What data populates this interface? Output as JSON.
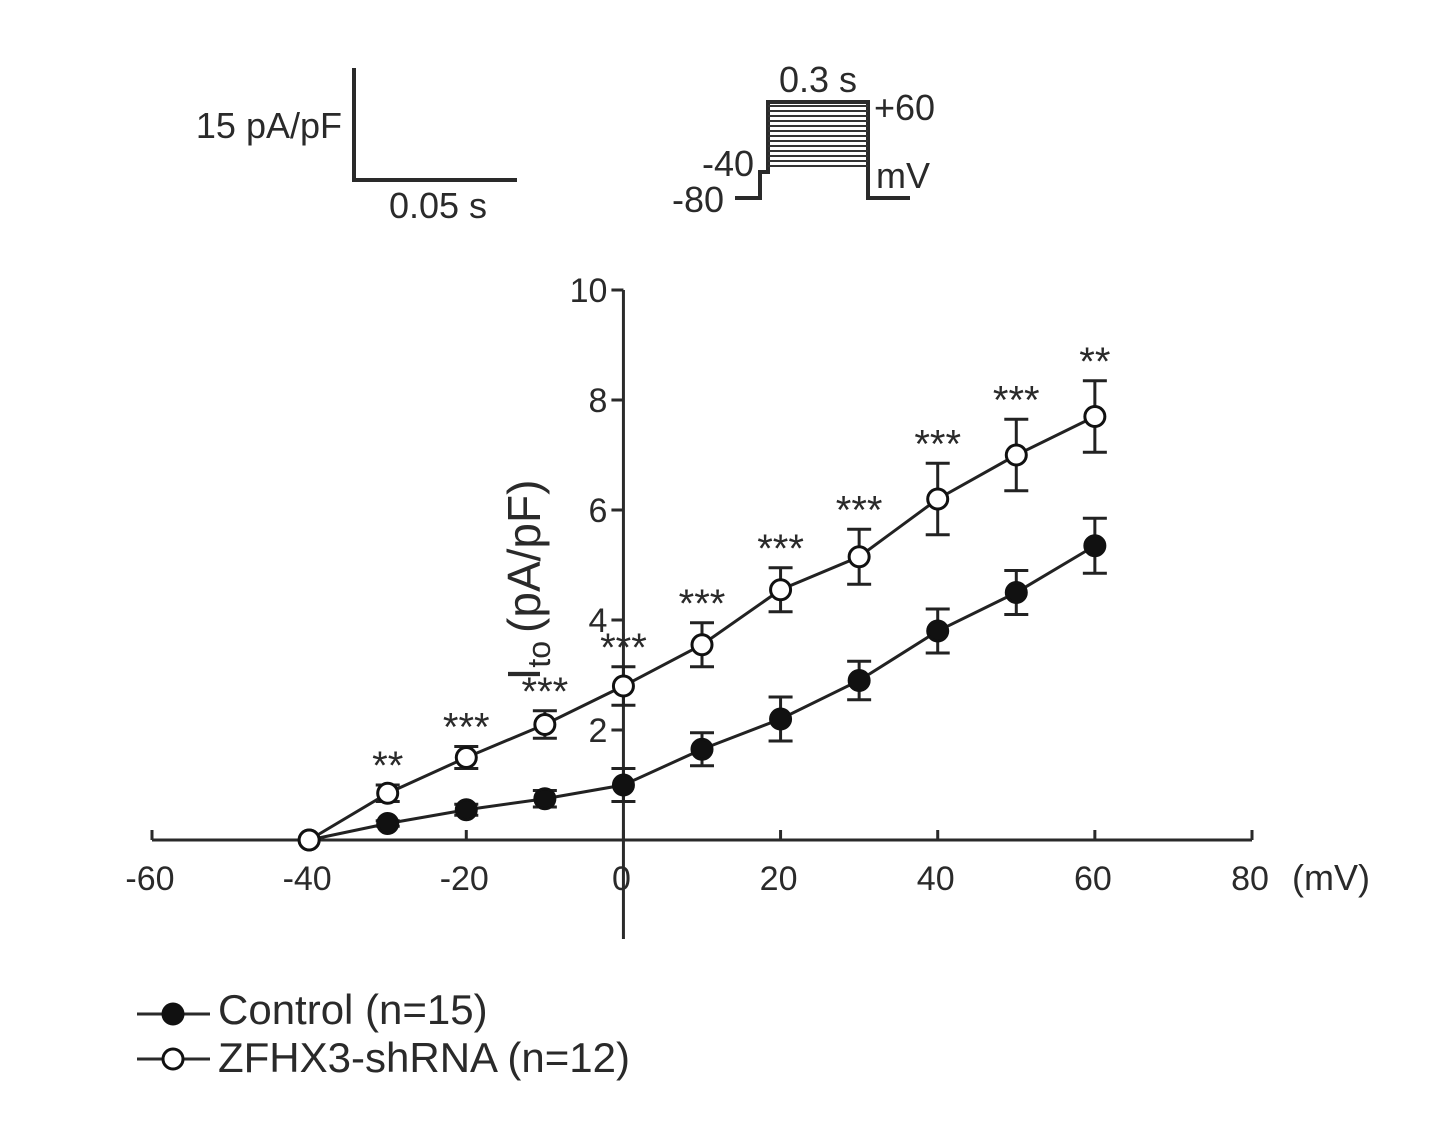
{
  "scale_bar": {
    "y_label": "15 pA/pF",
    "x_label": "0.05 s"
  },
  "protocol": {
    "duration": "0.3 s",
    "top": "+60",
    "step": "-40",
    "hold": "-80",
    "unit": "mV"
  },
  "chart_data": {
    "type": "line",
    "title": "",
    "xlabel": "(mV)",
    "ylabel_main": "I",
    "ylabel_sub": "to",
    "ylabel_unit": "(pA/pF)",
    "xlim": [
      -60,
      80
    ],
    "ylim": [
      -1.8,
      10
    ],
    "x_ticks": [
      -60,
      -40,
      -20,
      0,
      20,
      40,
      60,
      80
    ],
    "x_tick_labels": [
      "-60",
      "-40",
      "-20",
      "0",
      "20",
      "40",
      "60",
      "80"
    ],
    "y_ticks": [
      2,
      4,
      6,
      8,
      10
    ],
    "y_tick_labels": [
      "2",
      "4",
      "6",
      "8",
      "10"
    ],
    "series": [
      {
        "name": "Control (n=15)",
        "marker": "filled-circle",
        "x": [
          -40,
          -30,
          -20,
          -10,
          0,
          10,
          20,
          30,
          40,
          50,
          60
        ],
        "y": [
          0,
          0.3,
          0.55,
          0.75,
          1.0,
          1.65,
          2.2,
          2.9,
          3.8,
          4.5,
          5.35
        ],
        "err": [
          0,
          0.05,
          0.1,
          0.15,
          0.3,
          0.3,
          0.4,
          0.35,
          0.4,
          0.4,
          0.5
        ]
      },
      {
        "name": "ZFHX3-shRNA (n=12)",
        "marker": "open-circle",
        "x": [
          -40,
          -30,
          -20,
          -10,
          0,
          10,
          20,
          30,
          40,
          50,
          60
        ],
        "y": [
          0,
          0.85,
          1.5,
          2.1,
          2.8,
          3.55,
          4.55,
          5.15,
          6.2,
          7.0,
          7.7
        ],
        "err": [
          0,
          0.15,
          0.2,
          0.25,
          0.35,
          0.4,
          0.4,
          0.5,
          0.65,
          0.65,
          0.65
        ]
      }
    ],
    "annotations": [
      {
        "x": -30,
        "text": "**"
      },
      {
        "x": -20,
        "text": "***"
      },
      {
        "x": -10,
        "text": "***"
      },
      {
        "x": 0,
        "text": "***"
      },
      {
        "x": 10,
        "text": "***"
      },
      {
        "x": 20,
        "text": "***"
      },
      {
        "x": 30,
        "text": "***"
      },
      {
        "x": 40,
        "text": "***"
      },
      {
        "x": 50,
        "text": "***"
      },
      {
        "x": 60,
        "text": "**"
      }
    ],
    "legend": {
      "position": "bottom-left"
    }
  }
}
